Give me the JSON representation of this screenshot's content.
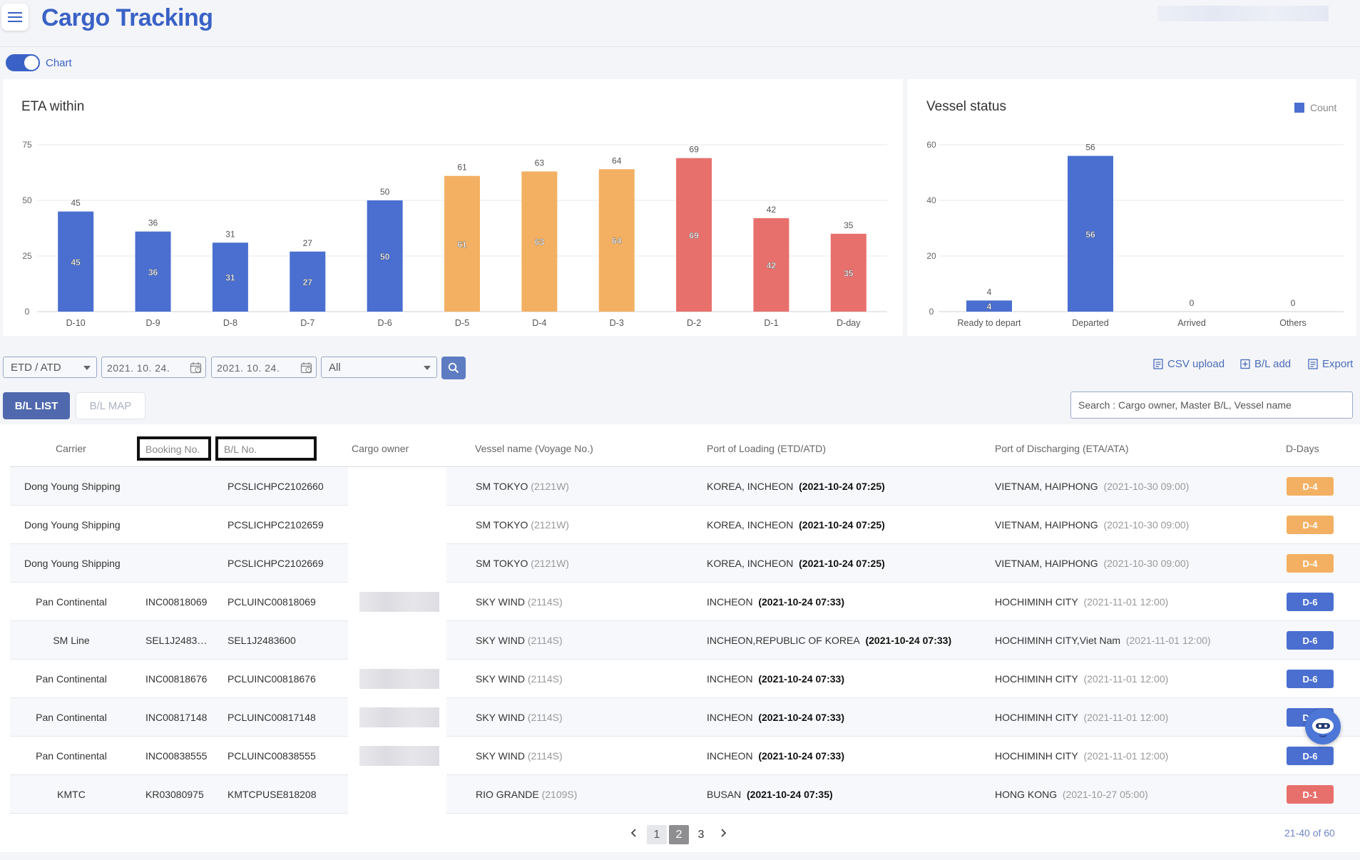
{
  "app": {
    "title": "Cargo Tracking",
    "chart_toggle_label": "Chart",
    "chart_toggle_on": true
  },
  "charts": {
    "eta": {
      "title": "ETA within"
    },
    "vessel": {
      "title": "Vessel status",
      "legend": "Count"
    }
  },
  "chart_data": [
    {
      "type": "bar",
      "title": "ETA within",
      "categories": [
        "D-10",
        "D-9",
        "D-8",
        "D-7",
        "D-6",
        "D-5",
        "D-4",
        "D-3",
        "D-2",
        "D-1",
        "D-day"
      ],
      "values": [
        45,
        36,
        31,
        27,
        50,
        61,
        63,
        64,
        69,
        42,
        35
      ],
      "colors": [
        "#4a6fd0",
        "#4a6fd0",
        "#4a6fd0",
        "#4a6fd0",
        "#4a6fd0",
        "#f3b062",
        "#f3b062",
        "#f3b062",
        "#e8706c",
        "#e8706c",
        "#e8706c"
      ],
      "yticks": [
        0,
        25,
        50,
        75
      ],
      "ylim": [
        0,
        75
      ],
      "grid": true
    },
    {
      "type": "bar",
      "title": "Vessel status",
      "categories": [
        "Ready to depart",
        "Departed",
        "Arrived",
        "Others"
      ],
      "series": [
        {
          "name": "Count",
          "values": [
            4,
            56,
            0,
            0
          ]
        }
      ],
      "color": "#4a6fd0",
      "yticks": [
        0,
        20,
        40,
        60
      ],
      "ylim": [
        0,
        60
      ],
      "legend_position": "top-right",
      "grid": true
    }
  ],
  "filters": {
    "date_type": "ETD / ATD",
    "date_from": "2021. 10. 24.",
    "date_to": "2021. 10. 24.",
    "status": "All",
    "csv_upload": "CSV upload",
    "bl_add": "B/L add",
    "export": "Export"
  },
  "tabs": {
    "list": "B/L LIST",
    "map": "B/L MAP"
  },
  "search": {
    "placeholder": "Search : Cargo owner, Master B/L, Vessel name"
  },
  "table": {
    "columns": {
      "carrier": "Carrier",
      "booking": "Booking No.",
      "bl": "B/L No.",
      "owner": "Cargo owner",
      "vessel": "Vessel name (Voyage No.)",
      "pol": "Port of Loading (ETD/ATD)",
      "pod": "Port of Discharging (ETA/ATA)",
      "ddays": "D-Days"
    },
    "rows": [
      {
        "carrier": "Dong Young Shipping",
        "booking": "",
        "bl": "PCSLICHPC2102660",
        "vessel": "SM TOKYO",
        "voyage": "(2121W)",
        "pol": "KOREA, INCHEON",
        "etd": "(2021-10-24 07:25)",
        "pod": "VIETNAM, HAIPHONG",
        "eta": "(2021-10-30 09:00)",
        "dday": "D-4",
        "dday_color": "#f3b062"
      },
      {
        "carrier": "Dong Young Shipping",
        "booking": "",
        "bl": "PCSLICHPC2102659",
        "vessel": "SM TOKYO",
        "voyage": "(2121W)",
        "pol": "KOREA, INCHEON",
        "etd": "(2021-10-24 07:25)",
        "pod": "VIETNAM, HAIPHONG",
        "eta": "(2021-10-30 09:00)",
        "dday": "D-4",
        "dday_color": "#f3b062"
      },
      {
        "carrier": "Dong Young Shipping",
        "booking": "",
        "bl": "PCSLICHPC2102669",
        "vessel": "SM TOKYO",
        "voyage": "(2121W)",
        "pol": "KOREA, INCHEON",
        "etd": "(2021-10-24 07:25)",
        "pod": "VIETNAM, HAIPHONG",
        "eta": "(2021-10-30 09:00)",
        "dday": "D-4",
        "dday_color": "#f3b062"
      },
      {
        "carrier": "Pan Continental",
        "booking": "INC00818069",
        "bl": "PCLUINC00818069",
        "vessel": "SKY WIND",
        "voyage": "(2114S)",
        "pol": "INCHEON",
        "etd": "(2021-10-24 07:33)",
        "pod": "HOCHIMINH CITY",
        "eta": "(2021-11-01 12:00)",
        "dday": "D-6",
        "dday_color": "#4a6fd0"
      },
      {
        "carrier": "SM Line",
        "booking": "SEL1J2483…",
        "bl": "SEL1J2483600",
        "vessel": "SKY WIND",
        "voyage": "(2114S)",
        "pol": "INCHEON,REPUBLIC OF KOREA",
        "etd": "(2021-10-24 07:33)",
        "pod": "HOCHIMINH CITY,Viet Nam",
        "eta": "(2021-11-01 12:00)",
        "dday": "D-6",
        "dday_color": "#4a6fd0"
      },
      {
        "carrier": "Pan Continental",
        "booking": "INC00818676",
        "bl": "PCLUINC00818676",
        "vessel": "SKY WIND",
        "voyage": "(2114S)",
        "pol": "INCHEON",
        "etd": "(2021-10-24 07:33)",
        "pod": "HOCHIMINH CITY",
        "eta": "(2021-11-01 12:00)",
        "dday": "D-6",
        "dday_color": "#4a6fd0"
      },
      {
        "carrier": "Pan Continental",
        "booking": "INC00817148",
        "bl": "PCLUINC00817148",
        "vessel": "SKY WIND",
        "voyage": "(2114S)",
        "pol": "INCHEON",
        "etd": "(2021-10-24 07:33)",
        "pod": "HOCHIMINH CITY",
        "eta": "(2021-11-01 12:00)",
        "dday": "D-6",
        "dday_color": "#4a6fd0"
      },
      {
        "carrier": "Pan Continental",
        "booking": "INC00838555",
        "bl": "PCLUINC00838555",
        "vessel": "SKY WIND",
        "voyage": "(2114S)",
        "pol": "INCHEON",
        "etd": "(2021-10-24 07:33)",
        "pod": "HOCHIMINH CITY",
        "eta": "(2021-11-01 12:00)",
        "dday": "D-6",
        "dday_color": "#4a6fd0"
      },
      {
        "carrier": "KMTC",
        "booking": "KR03080975",
        "bl": "KMTCPUSE818208",
        "vessel": "RIO GRANDE",
        "voyage": "(2109S)",
        "pol": "BUSAN",
        "etd": "(2021-10-24 07:35)",
        "pod": "HONG KONG",
        "eta": "(2021-10-27 05:00)",
        "dday": "D-1",
        "dday_color": "#e8706c"
      }
    ]
  },
  "pagination": {
    "pages": [
      "1",
      "2",
      "3"
    ],
    "current": "2",
    "summary": "21-40 of 60"
  },
  "icons": [
    "menu-icon",
    "calendar-icon",
    "search-icon",
    "csv-upload-icon",
    "bl-add-icon",
    "export-icon",
    "chevron-left-icon",
    "chevron-right-icon",
    "chat-bot-icon"
  ]
}
